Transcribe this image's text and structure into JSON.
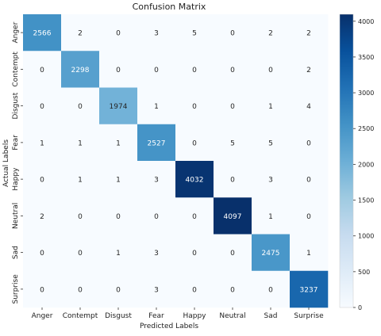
{
  "chart_data": {
    "type": "heatmap",
    "title": "Confusion Matrix",
    "xlabel": "Predicted Labels",
    "ylabel": "Actual Labels",
    "x_categories": [
      "Anger",
      "Contempt",
      "Disgust",
      "Fear",
      "Happy",
      "Neutral",
      "Sad",
      "Surprise"
    ],
    "y_categories": [
      "Anger",
      "Contempt",
      "Disgust",
      "Fear",
      "Happy",
      "Neutral",
      "Sad",
      "Surprise"
    ],
    "values": [
      [
        2566,
        2,
        0,
        3,
        5,
        0,
        2,
        2
      ],
      [
        0,
        2298,
        0,
        0,
        0,
        0,
        0,
        2
      ],
      [
        0,
        0,
        1974,
        1,
        0,
        0,
        1,
        4
      ],
      [
        1,
        1,
        1,
        2527,
        0,
        5,
        5,
        0
      ],
      [
        0,
        1,
        1,
        3,
        4032,
        0,
        3,
        0
      ],
      [
        2,
        0,
        0,
        0,
        0,
        4097,
        1,
        0
      ],
      [
        0,
        0,
        1,
        3,
        0,
        0,
        2475,
        1
      ],
      [
        0,
        0,
        0,
        3,
        0,
        0,
        0,
        3237
      ]
    ],
    "colorbar": {
      "min": 0,
      "max": 4097,
      "ticks": [
        0,
        500,
        1000,
        1500,
        2000,
        2500,
        3000,
        3500,
        4000
      ],
      "colormap": "Blues",
      "low_color": "#f7fbff",
      "high_color": "#08306b"
    }
  }
}
